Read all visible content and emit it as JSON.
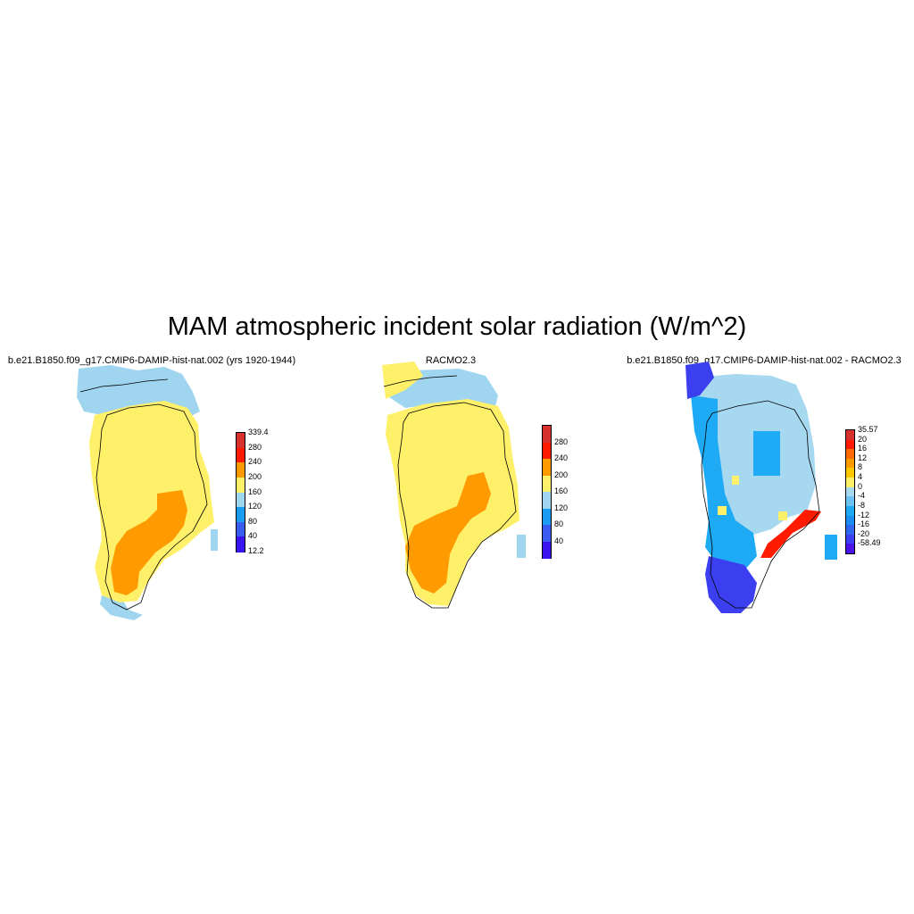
{
  "title": "MAM atmospheric incident solar radiation (W/m^2)",
  "panels": [
    {
      "title": "b.e21.B1850.f09_g17.CMIP6-DAMIP-hist-nat.002 (yrs 1920-1944)",
      "colorbar": {
        "labels": [
          "339.4",
          "280",
          "240",
          "200",
          "160",
          "120",
          "80",
          "40",
          "12.2"
        ],
        "colors": [
          "#d7322d",
          "#ff1a00",
          "#ff9a00",
          "#fff06a",
          "#9fd5ef",
          "#1b9cf3",
          "#3a5bf0",
          "#3a14f0"
        ]
      }
    },
    {
      "title": "RACMO2.3",
      "colorbar": {
        "labels": [
          "280",
          "240",
          "200",
          "160",
          "120",
          "80",
          "40"
        ],
        "colors": [
          "#d7322d",
          "#ff1a00",
          "#ff9a00",
          "#fff06a",
          "#9fd5ef",
          "#1b9cf3",
          "#3a5bf0",
          "#3a14f0"
        ]
      }
    },
    {
      "title": "b.e21.B1850.f09_g17.CMIP6-DAMIP-hist-nat.002 - RACMO2.3",
      "colorbar": {
        "labels": [
          "35.57",
          "20",
          "16",
          "12",
          "8",
          "4",
          "0",
          "-4",
          "-8",
          "-12",
          "-16",
          "-20",
          "-58.49"
        ],
        "colors": [
          "#d7322d",
          "#ff1a00",
          "#ff6b00",
          "#ff9a00",
          "#ffc800",
          "#fff06a",
          "#a6d8f0",
          "#6cc2f3",
          "#1eaaf5",
          "#1b8cf1",
          "#2f68ee",
          "#3b3ff0",
          "#4a14e8"
        ]
      }
    }
  ]
}
